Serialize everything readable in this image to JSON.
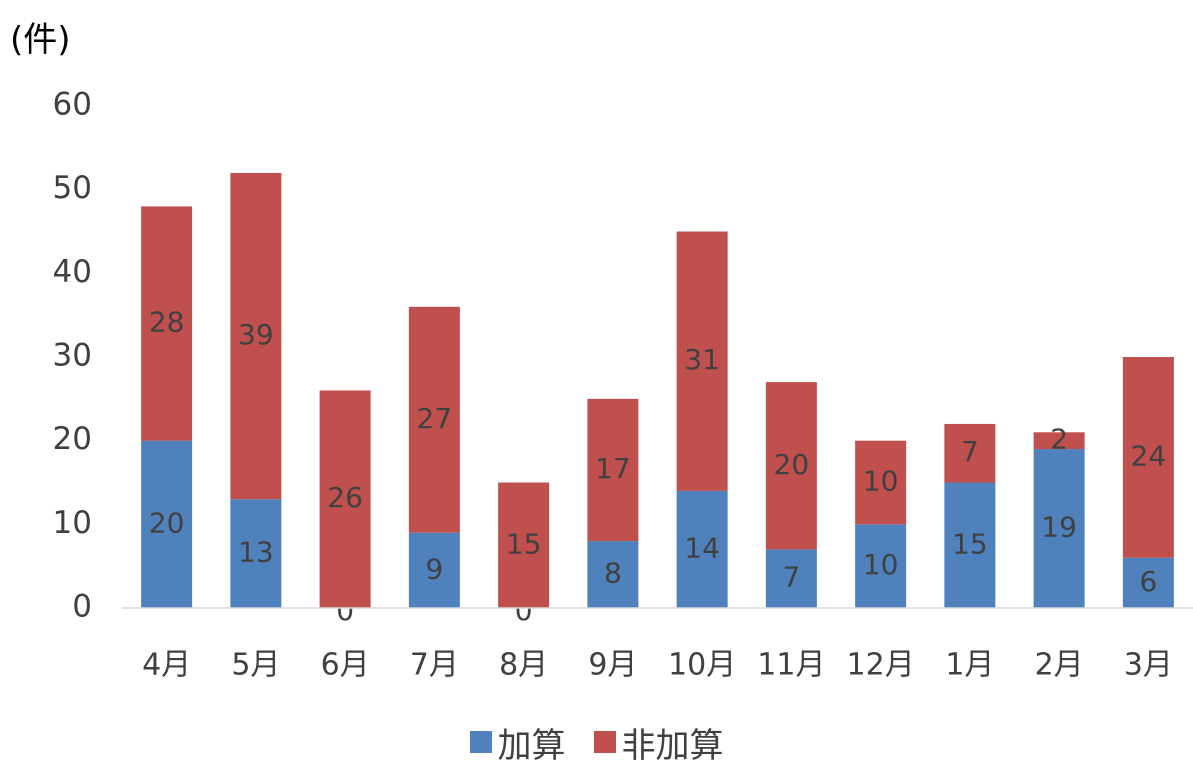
{
  "chart_data": {
    "type": "bar",
    "stacked": true,
    "unit_label": "(件)",
    "categories": [
      "4月",
      "5月",
      "6月",
      "7月",
      "8月",
      "9月",
      "10月",
      "11月",
      "12月",
      "1月",
      "2月",
      "3月"
    ],
    "series": [
      {
        "name": "加算",
        "color": "#4F81BD",
        "values": [
          20,
          13,
          0,
          9,
          0,
          8,
          14,
          7,
          10,
          15,
          19,
          6
        ]
      },
      {
        "name": "非加算",
        "color": "#C0504D",
        "values": [
          28,
          39,
          26,
          27,
          15,
          17,
          31,
          20,
          10,
          7,
          2,
          24
        ]
      }
    ],
    "ylim": [
      0,
      60
    ],
    "yticks": [
      0,
      10,
      20,
      30,
      40,
      50,
      60
    ],
    "grid": false,
    "legend_position": "bottom"
  }
}
